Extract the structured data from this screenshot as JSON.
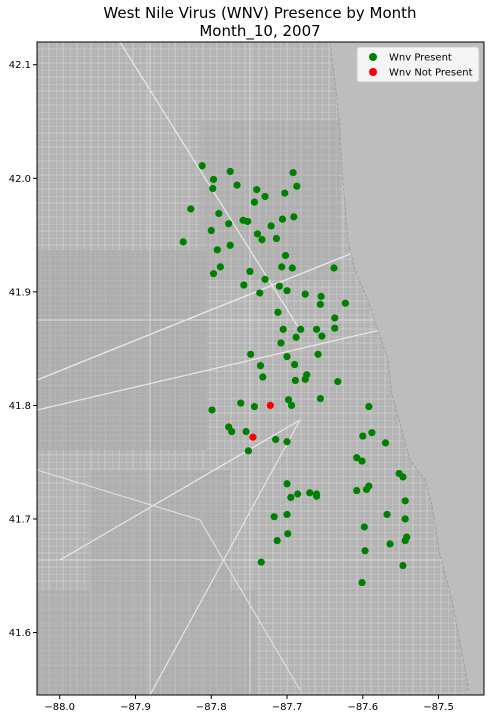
{
  "title": {
    "line1": "West Nile Virus (WNV) Presence by Month",
    "line2": "Month_10, 2007"
  },
  "colors": {
    "present": "#008000",
    "not_present": "#ff0000",
    "lake": "#bdbdbd",
    "land": "#b4b4b4"
  },
  "chart_data": {
    "type": "scatter",
    "title": "West Nile Virus (WNV) Presence by Month\nMonth_10, 2007",
    "xlabel": "",
    "ylabel": "",
    "xlim": [
      -88.03,
      -87.44
    ],
    "ylim": [
      41.545,
      42.12
    ],
    "x_ticks": [
      -88.0,
      -87.9,
      -87.8,
      -87.7,
      -87.6,
      -87.5
    ],
    "x_tick_labels": [
      "−88.0",
      "−87.9",
      "−87.8",
      "−87.7",
      "−87.6",
      "−87.5"
    ],
    "y_ticks": [
      41.6,
      41.7,
      41.8,
      41.9,
      42.0,
      42.1
    ],
    "y_tick_labels": [
      "41.6",
      "41.7",
      "41.8",
      "41.9",
      "42.0",
      "42.1"
    ],
    "grid": false,
    "background": "street map of Chicago with Lake Michigan on the east side",
    "legend": {
      "placement": "top-right",
      "entries": [
        "Wnv Present",
        "Wnv Not Present"
      ]
    },
    "series": [
      {
        "name": "Wnv Present",
        "color": "#008000",
        "points": [
          [
            -87.812,
            42.011
          ],
          [
            -87.775,
            42.006
          ],
          [
            -87.692,
            42.005
          ],
          [
            -87.797,
            41.999
          ],
          [
            -87.766,
            41.994
          ],
          [
            -87.687,
            41.993
          ],
          [
            -87.798,
            41.991
          ],
          [
            -87.74,
            41.99
          ],
          [
            -87.703,
            41.987
          ],
          [
            -87.729,
            41.984
          ],
          [
            -87.827,
            41.973
          ],
          [
            -87.79,
            41.969
          ],
          [
            -87.743,
            41.979
          ],
          [
            -87.758,
            41.963
          ],
          [
            -87.777,
            41.96
          ],
          [
            -87.752,
            41.962
          ],
          [
            -87.706,
            41.964
          ],
          [
            -87.691,
            41.966
          ],
          [
            -87.721,
            41.958
          ],
          [
            -87.8,
            41.954
          ],
          [
            -87.739,
            41.951
          ],
          [
            -87.714,
            41.947
          ],
          [
            -87.733,
            41.946
          ],
          [
            -87.837,
            41.944
          ],
          [
            -87.775,
            41.941
          ],
          [
            -87.792,
            41.937
          ],
          [
            -87.702,
            41.932
          ],
          [
            -87.707,
            41.922
          ],
          [
            -87.693,
            41.921
          ],
          [
            -87.638,
            41.921
          ],
          [
            -87.788,
            41.922
          ],
          [
            -87.797,
            41.916
          ],
          [
            -87.749,
            41.918
          ],
          [
            -87.729,
            41.911
          ],
          [
            -87.757,
            41.906
          ],
          [
            -87.71,
            41.905
          ],
          [
            -87.7,
            41.901
          ],
          [
            -87.736,
            41.899
          ],
          [
            -87.676,
            41.898
          ],
          [
            -87.655,
            41.896
          ],
          [
            -87.656,
            41.889
          ],
          [
            -87.623,
            41.89
          ],
          [
            -87.712,
            41.882
          ],
          [
            -87.637,
            41.877
          ],
          [
            -87.682,
            41.867
          ],
          [
            -87.661,
            41.867
          ],
          [
            -87.705,
            41.867
          ],
          [
            -87.637,
            41.868
          ],
          [
            -87.654,
            41.861
          ],
          [
            -87.688,
            41.86
          ],
          [
            -87.708,
            41.855
          ],
          [
            -87.748,
            41.845
          ],
          [
            -87.7,
            41.843
          ],
          [
            -87.659,
            41.845
          ],
          [
            -87.69,
            41.836
          ],
          [
            -87.735,
            41.835
          ],
          [
            -87.674,
            41.827
          ],
          [
            -87.732,
            41.825
          ],
          [
            -87.676,
            41.823
          ],
          [
            -87.689,
            41.822
          ],
          [
            -87.633,
            41.821
          ],
          [
            -87.656,
            41.806
          ],
          [
            -87.761,
            41.802
          ],
          [
            -87.799,
            41.796
          ],
          [
            -87.743,
            41.799
          ],
          [
            -87.694,
            41.8
          ],
          [
            -87.698,
            41.805
          ],
          [
            -87.592,
            41.799
          ],
          [
            -87.6,
            41.773
          ],
          [
            -87.588,
            41.776
          ],
          [
            -87.773,
            41.777
          ],
          [
            -87.777,
            41.781
          ],
          [
            -87.754,
            41.777
          ],
          [
            -87.7,
            41.768
          ],
          [
            -87.715,
            41.77
          ],
          [
            -87.57,
            41.767
          ],
          [
            -87.751,
            41.76
          ],
          [
            -87.608,
            41.754
          ],
          [
            -87.601,
            41.751
          ],
          [
            -87.552,
            41.74
          ],
          [
            -87.547,
            41.737
          ],
          [
            -87.592,
            41.729
          ],
          [
            -87.595,
            41.726
          ],
          [
            -87.7,
            41.731
          ],
          [
            -87.608,
            41.725
          ],
          [
            -87.686,
            41.722
          ],
          [
            -87.67,
            41.723
          ],
          [
            -87.661,
            41.722
          ],
          [
            -87.661,
            41.72
          ],
          [
            -87.695,
            41.719
          ],
          [
            -87.544,
            41.716
          ],
          [
            -87.568,
            41.704
          ],
          [
            -87.717,
            41.702
          ],
          [
            -87.7,
            41.704
          ],
          [
            -87.544,
            41.7
          ],
          [
            -87.598,
            41.693
          ],
          [
            -87.542,
            41.684
          ],
          [
            -87.544,
            41.681
          ],
          [
            -87.713,
            41.681
          ],
          [
            -87.699,
            41.687
          ],
          [
            -87.597,
            41.672
          ],
          [
            -87.564,
            41.678
          ],
          [
            -87.734,
            41.662
          ],
          [
            -87.547,
            41.659
          ],
          [
            -87.601,
            41.644
          ]
        ]
      },
      {
        "name": "Wnv Not Present",
        "color": "#ff0000",
        "points": [
          [
            -87.722,
            41.8
          ],
          [
            -87.745,
            41.772
          ]
        ]
      }
    ]
  }
}
